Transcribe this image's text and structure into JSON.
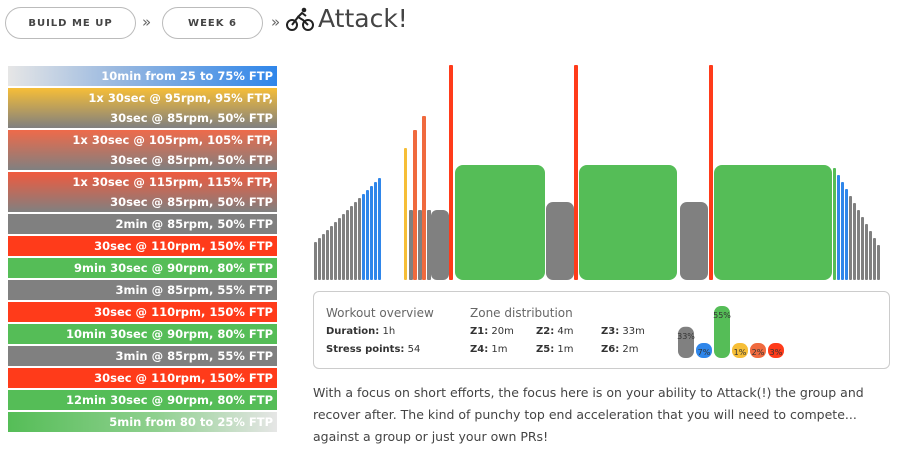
{
  "breadcrumb": {
    "items": [
      "BUILD ME UP",
      "WEEK 6"
    ],
    "separator": "»"
  },
  "title": "Attack!",
  "steps": [
    {
      "lines": [
        "10min from 25 to 75% FTP"
      ],
      "bg": "linear-gradient(90deg,#e6e6e6 0%,#9ab9e0 40%,#2f86ea 100%)"
    },
    {
      "lines": [
        "1x 30sec @ 95rpm, 95% FTP,",
        "30sec @ 85rpm, 50% FTP"
      ],
      "bg": "linear-gradient(180deg,#f6be37 0%,#808080 100%)"
    },
    {
      "lines": [
        "1x 30sec @ 105rpm, 105% FTP,",
        "30sec @ 85rpm, 50% FTP"
      ],
      "bg": "linear-gradient(180deg,#ee6a4a 0%,#808080 100%)"
    },
    {
      "lines": [
        "1x 30sec @ 115rpm, 115% FTP,",
        "30sec @ 85rpm, 50% FTP"
      ],
      "bg": "linear-gradient(180deg,#f05a3e 0%,#808080 100%)"
    },
    {
      "lines": [
        "2min @ 85rpm, 50% FTP"
      ],
      "bg": "#808080"
    },
    {
      "lines": [
        "30sec @ 110rpm, 150% FTP"
      ],
      "bg": "#ff3b1a"
    },
    {
      "lines": [
        "9min 30sec @ 90rpm, 80% FTP"
      ],
      "bg": "#55bd57"
    },
    {
      "lines": [
        "3min @ 85rpm, 55% FTP"
      ],
      "bg": "#808080"
    },
    {
      "lines": [
        "30sec @ 110rpm, 150% FTP"
      ],
      "bg": "#ff3b1a"
    },
    {
      "lines": [
        "10min 30sec @ 90rpm, 80% FTP"
      ],
      "bg": "#55bd57"
    },
    {
      "lines": [
        "3min @ 85rpm, 55% FTP"
      ],
      "bg": "#808080"
    },
    {
      "lines": [
        "30sec @ 110rpm, 150% FTP"
      ],
      "bg": "#ff3b1a"
    },
    {
      "lines": [
        "12min 30sec @ 90rpm, 80% FTP"
      ],
      "bg": "#55bd57"
    },
    {
      "lines": [
        "5min from 80 to 25% FTP"
      ],
      "bg": "linear-gradient(90deg,#55bd57 0%,#8fd08f 55%,#e6e6e6 100%)"
    }
  ],
  "overview": {
    "heading": "Workout overview",
    "duration_label": "Duration:",
    "duration_value": "1h",
    "stress_label": "Stress points:",
    "stress_value": "54"
  },
  "zones": {
    "heading": "Zone distribution",
    "items": [
      {
        "label": "Z1:",
        "value": "20m"
      },
      {
        "label": "Z2:",
        "value": "4m"
      },
      {
        "label": "Z3:",
        "value": "33m"
      },
      {
        "label": "Z4:",
        "value": "1m"
      },
      {
        "label": "Z5:",
        "value": "1m"
      },
      {
        "label": "Z6:",
        "value": "2m"
      }
    ],
    "bars": [
      {
        "label": "33%",
        "percent": 33,
        "color": "#808080"
      },
      {
        "label": "7%",
        "percent": 7,
        "color": "#2f86ea"
      },
      {
        "label": "55%",
        "percent": 55,
        "color": "#55bd57"
      },
      {
        "label": "1%",
        "percent": 1,
        "color": "#f6be37"
      },
      {
        "label": "2%",
        "percent": 2,
        "color": "#f06a3e"
      },
      {
        "label": "3%",
        "percent": 3,
        "color": "#ff3b1a"
      }
    ]
  },
  "description": "With a focus on short efforts, the focus here is on your ability to Attack(!) the group and recover after. The kind of punchy top end acceleration that you will need to compete... against a group or just your own PRs!",
  "colors": {
    "gray": "#808080",
    "blue": "#2f86ea",
    "green": "#55bd57",
    "yellow": "#f6be37",
    "orange": "#f06a3e",
    "red": "#ff3b1a"
  },
  "icons": [
    "bicycle-icon"
  ]
}
